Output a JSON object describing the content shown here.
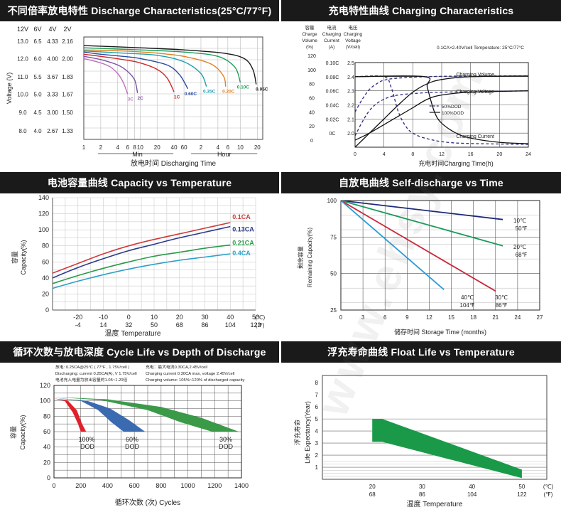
{
  "watermark": "www.ehsy.com",
  "panels": {
    "discharge": {
      "title": "不同倍率放电特性 Discharge Characteristics(25°C/77°F)",
      "volt_headers": [
        "12V",
        "6V",
        "4V",
        "2V"
      ],
      "ylabel": "Voltage (V)",
      "volt_ticks": [
        {
          "v": 2.16,
          "c": [
            "13.0",
            "6.5",
            "4.33",
            "2.16"
          ]
        },
        {
          "v": 2.0,
          "c": [
            "12.0",
            "6.0",
            "4.00",
            "2.00"
          ]
        },
        {
          "v": 1.83,
          "c": [
            "11.0",
            "5.5",
            "3.67",
            "1.83"
          ]
        },
        {
          "v": 1.67,
          "c": [
            "10.0",
            "5.0",
            "3.33",
            "1.67"
          ]
        },
        {
          "v": 1.5,
          "c": [
            "9.0",
            "4.5",
            "3.00",
            "1.50"
          ]
        },
        {
          "v": 1.33,
          "c": [
            "8.0",
            "4.0",
            "2.67",
            "1.33"
          ]
        }
      ],
      "x_ticks": [
        "1",
        "2",
        "4",
        "6",
        "8",
        "10",
        "20",
        "40",
        "60",
        "2",
        "4",
        "6",
        "10",
        "20"
      ],
      "min_label": "Min",
      "hour_label": "Hour",
      "xlabel": "放电时间 Discharging Time"
    },
    "charging": {
      "title": "充电特性曲线 Charging Characteristics",
      "col_headers": [
        {
          "zh": "容量",
          "en": [
            "Charge",
            "Volume",
            "(%)"
          ]
        },
        {
          "zh": "电流",
          "en": [
            "Charging",
            "Current",
            "(A)"
          ]
        },
        {
          "zh": "电压",
          "en": [
            "Charging",
            "Voltage",
            "(V/cell)"
          ]
        }
      ],
      "condition": "0.1CA×2.40V/cell  Temperature: 25°C/77°C",
      "volume_ticks": [
        "120",
        "100",
        "80",
        "60",
        "40",
        "20",
        "0"
      ],
      "current_ticks": [
        "0.10C",
        "0.08C",
        "0.06C",
        "0.04C",
        "0.02C",
        "0C"
      ],
      "voltage_ticks": [
        "2.5",
        "2.4",
        "2.3",
        "2.2",
        "2.1",
        "2.0"
      ],
      "x_ticks": [
        "0",
        "4",
        "8",
        "12",
        "16",
        "20",
        "24"
      ],
      "xlabel": "充电时间Charging Time(h)",
      "labels": {
        "vol": "Charging Volume",
        "volt": "Charging Voltage",
        "cur": "Charging Current"
      },
      "legend": [
        {
          "label": "50%DOD",
          "style": "dashed"
        },
        {
          "label": "100%DOD",
          "style": "solid"
        }
      ]
    },
    "capacity": {
      "title": "电池容量曲线 Capacity vs Temperature",
      "ylabel_zh": "容量",
      "ylabel_en": "Capacity(%)",
      "y_ticks": [
        "0",
        "20",
        "40",
        "60",
        "80",
        "100",
        "120",
        "140"
      ],
      "c_ticks": [
        "-20",
        "-10",
        "0",
        "10",
        "20",
        "30",
        "40",
        "50"
      ],
      "f_ticks": [
        "-4",
        "14",
        "32",
        "50",
        "68",
        "86",
        "104",
        "122"
      ],
      "unit_c": "(℃)",
      "unit_f": "(℉)",
      "xlabel": "温度 Temperature"
    },
    "selfdischarge": {
      "title": "自放电曲线 Self-discharge vs Time",
      "ylabel_zh": "剩余容量",
      "ylabel_en": "Remaining Capacity(%)",
      "y_ticks": [
        "25",
        "50",
        "75",
        "100"
      ],
      "x_ticks": [
        "0",
        "3",
        "6",
        "9",
        "12",
        "15",
        "18",
        "21",
        "24",
        "27"
      ],
      "xlabel": "储存时间 Storage Time (months)"
    },
    "cycle": {
      "title": "循环次数与放电深度 Cycle Life vs Depth of Discharge",
      "notes": [
        "放电: 0.25CA@25°C ( 77°F , 1.75V/cell )",
        "Discharging: current 0.25CA(A), V 1.75V/cell",
        "电池充入电量为放出容量的1.05~1.20倍",
        "充电：最大电流0.30CA,2.45V/cell",
        "Charging current 0.30CA max, voltage 2.45V/cell",
        "Charging volume: 105%~120% of discharged capacity"
      ],
      "ylabel_zh": "容量",
      "ylabel_en": "Capacity(%)",
      "y_ticks": [
        "0",
        "20",
        "40",
        "60",
        "80",
        "100",
        "120"
      ],
      "x_ticks": [
        "0",
        "200",
        "400",
        "600",
        "800",
        "1000",
        "1200",
        "1400"
      ],
      "xlabel": "循环次数 (次) Cycles"
    },
    "float": {
      "title": "浮充寿命曲线 Float Life vs Temperature",
      "ylabel_zh": "浮充寿命",
      "ylabel_en": "Life Expectancy(Year)",
      "y_ticks": [
        "1",
        "2",
        "3",
        "4",
        "5",
        "6",
        "7",
        "8"
      ],
      "c_ticks": [
        "20",
        "30",
        "40",
        "50"
      ],
      "f_ticks": [
        "68",
        "86",
        "104",
        "122"
      ],
      "unit_c": "(℃)",
      "unit_f": "(℉)",
      "xlabel": "温度 Temperature"
    }
  },
  "chart_data": [
    {
      "type": "line",
      "title": "不同倍率放电特性 Discharge Characteristics(25°C/77°F)",
      "xlabel": "放电时间 Discharging Time",
      "ylabel": "Voltage (V)",
      "x_scale": "log",
      "x_unit": "minutes",
      "ylim": [
        1.25,
        2.2
      ],
      "series": [
        {
          "name": "3C",
          "color": "#c070c0",
          "x": [
            1,
            2,
            3,
            4,
            5,
            6
          ],
          "y": [
            2.0,
            1.96,
            1.92,
            1.86,
            1.78,
            1.67
          ]
        },
        {
          "name": "2C",
          "color": "#7a50a0",
          "x": [
            1,
            2,
            4,
            6,
            8,
            9
          ],
          "y": [
            2.02,
            1.99,
            1.94,
            1.88,
            1.8,
            1.68
          ]
        },
        {
          "name": "1C",
          "color": "#d02828",
          "x": [
            1,
            2,
            5,
            10,
            20,
            30,
            40
          ],
          "y": [
            2.04,
            2.02,
            1.99,
            1.96,
            1.9,
            1.82,
            1.69
          ]
        },
        {
          "name": "0.60C",
          "color": "#2a4aa0",
          "x": [
            1,
            2,
            5,
            10,
            30,
            50,
            70
          ],
          "y": [
            2.06,
            2.04,
            2.02,
            2.0,
            1.94,
            1.85,
            1.72
          ]
        },
        {
          "name": "0.35C",
          "color": "#1aa0b0",
          "x": [
            1,
            5,
            20,
            60,
            120,
            150
          ],
          "y": [
            2.07,
            2.05,
            2.03,
            1.97,
            1.86,
            1.74
          ]
        },
        {
          "name": "0.20C",
          "color": "#e08020",
          "x": [
            1,
            5,
            20,
            60,
            180,
            300,
            330
          ],
          "y": [
            2.08,
            2.07,
            2.05,
            2.02,
            1.95,
            1.84,
            1.74
          ]
        },
        {
          "name": "0.10C",
          "color": "#1aa05a",
          "x": [
            1,
            10,
            60,
            240,
            480,
            600
          ],
          "y": [
            2.1,
            2.08,
            2.06,
            2.02,
            1.92,
            1.78
          ]
        },
        {
          "name": "0.05C",
          "color": "#1a1a1a",
          "x": [
            1,
            10,
            60,
            300,
            700,
            1000,
            1150
          ],
          "y": [
            2.12,
            2.1,
            2.08,
            2.05,
            2.0,
            1.9,
            1.76
          ]
        }
      ]
    },
    {
      "type": "line",
      "title": "充电特性曲线 Charging Characteristics",
      "xlabel": "充电时间Charging Time(h)",
      "xlim": [
        0,
        24
      ],
      "series": [
        {
          "name": "Charging Volume 50%DOD",
          "axis": "volume",
          "style": "dashed",
          "x": [
            0,
            1,
            2,
            3,
            4,
            6,
            10,
            16,
            24
          ],
          "y": [
            50,
            68,
            82,
            90,
            95,
            98,
            100,
            101,
            101
          ]
        },
        {
          "name": "Charging Volume 100%DOD",
          "axis": "volume",
          "style": "solid",
          "x": [
            0,
            2,
            4,
            6,
            8,
            10,
            12,
            16,
            24
          ],
          "y": [
            0,
            20,
            40,
            60,
            78,
            90,
            96,
            100,
            101
          ]
        },
        {
          "name": "Charging Voltage 50%DOD",
          "axis": "voltage",
          "style": "dashed",
          "x": [
            0,
            1,
            2,
            3,
            4,
            5,
            6,
            8,
            12,
            24
          ],
          "y": [
            2.08,
            2.18,
            2.26,
            2.31,
            2.34,
            2.36,
            2.37,
            2.38,
            2.39,
            2.4
          ]
        },
        {
          "name": "Charging Voltage 100%DOD",
          "axis": "voltage",
          "style": "solid",
          "x": [
            0,
            2,
            4,
            6,
            8,
            10,
            12,
            16,
            24
          ],
          "y": [
            2.05,
            2.1,
            2.16,
            2.22,
            2.28,
            2.34,
            2.37,
            2.39,
            2.4
          ]
        },
        {
          "name": "Charging Current 50%DOD",
          "axis": "current",
          "style": "dashed",
          "x": [
            0,
            4,
            5,
            6,
            7,
            8,
            10,
            14,
            24
          ],
          "y": [
            0.1,
            0.1,
            0.085,
            0.05,
            0.03,
            0.02,
            0.012,
            0.006,
            0.004
          ]
        },
        {
          "name": "Charging Current 100%DOD",
          "axis": "current",
          "style": "solid",
          "x": [
            0,
            9.6,
            10,
            11,
            12,
            14,
            16,
            20,
            24
          ],
          "y": [
            0.1,
            0.1,
            0.085,
            0.05,
            0.034,
            0.02,
            0.013,
            0.007,
            0.005
          ]
        }
      ]
    },
    {
      "type": "line",
      "title": "电池容量曲线 Capacity vs Temperature",
      "xlabel": "温度 Temperature",
      "ylabel": "Capacity(%)",
      "xlim": [
        -30,
        50
      ],
      "ylim": [
        0,
        140
      ],
      "series": [
        {
          "name": "0.1CA",
          "color": "#d03a3a",
          "x": [
            -30,
            -20,
            -10,
            0,
            10,
            20,
            30,
            40
          ],
          "y": [
            46,
            58,
            70,
            80,
            88,
            95,
            102,
            109
          ]
        },
        {
          "name": "0.13CA",
          "color": "#2a3a8a",
          "x": [
            -30,
            -20,
            -10,
            0,
            10,
            20,
            30,
            40
          ],
          "y": [
            40,
            53,
            64,
            74,
            82,
            90,
            97,
            104
          ]
        },
        {
          "name": "0.21CA",
          "color": "#2a9a4a",
          "x": [
            -30,
            -20,
            -10,
            0,
            10,
            20,
            30,
            40
          ],
          "y": [
            33,
            43,
            52,
            60,
            67,
            72,
            77,
            81
          ]
        },
        {
          "name": "0.4CA",
          "color": "#2aa0c8",
          "x": [
            -30,
            -20,
            -10,
            0,
            10,
            20,
            30,
            40
          ],
          "y": [
            27,
            36,
            44,
            51,
            57,
            62,
            66,
            70
          ]
        }
      ]
    },
    {
      "type": "line",
      "title": "自放电曲线 Self-discharge vs Time",
      "xlabel": "储存时间 Storage Time (months)",
      "ylabel": "Remaining Capacity(%)",
      "xlim": [
        0,
        27
      ],
      "ylim": [
        25,
        100
      ],
      "series": [
        {
          "name": "10℃ 50℉",
          "color": "#1e2a78",
          "x": [
            0,
            22
          ],
          "y": [
            100,
            87
          ]
        },
        {
          "name": "20℃ 68℉",
          "color": "#1a9a5a",
          "x": [
            0,
            22
          ],
          "y": [
            100,
            69
          ]
        },
        {
          "name": "30℃ 86℉",
          "color": "#c8283a",
          "x": [
            0,
            21
          ],
          "y": [
            100,
            38
          ]
        },
        {
          "name": "40℃ 104℉",
          "color": "#2a9ad8",
          "x": [
            0,
            14
          ],
          "y": [
            100,
            39
          ]
        }
      ]
    },
    {
      "type": "area",
      "title": "循环次数与放电深度 Cycle Life vs Depth of Discharge",
      "xlabel": "循环次数 (次) Cycles",
      "ylabel": "Capacity(%)",
      "xlim": [
        0,
        1400
      ],
      "ylim": [
        0,
        120
      ],
      "series": [
        {
          "name": "100% DOD",
          "color": "#e0202a",
          "upper": [
            [
              0,
              103
            ],
            [
              100,
              101
            ],
            [
              170,
              88
            ],
            [
              210,
              70
            ],
            [
              240,
              60
            ]
          ],
          "lower": [
            [
              0,
              103
            ],
            [
              80,
              100
            ],
            [
              140,
              85
            ],
            [
              180,
              70
            ],
            [
              200,
              60
            ]
          ]
        },
        {
          "name": "60% DOD",
          "color": "#3a6ab0",
          "upper": [
            [
              0,
              104
            ],
            [
              250,
              100
            ],
            [
              420,
              90
            ],
            [
              560,
              75
            ],
            [
              680,
              60
            ]
          ],
          "lower": [
            [
              0,
              104
            ],
            [
              200,
              100
            ],
            [
              330,
              88
            ],
            [
              430,
              72
            ],
            [
              520,
              60
            ]
          ]
        },
        {
          "name": "30% DOD",
          "color": "#3a9a48",
          "upper": [
            [
              0,
              105
            ],
            [
              400,
              102
            ],
            [
              800,
              92
            ],
            [
              1100,
              78
            ],
            [
              1380,
              60
            ]
          ],
          "lower": [
            [
              0,
              105
            ],
            [
              350,
              101
            ],
            [
              700,
              88
            ],
            [
              950,
              72
            ],
            [
              1180,
              60
            ]
          ]
        }
      ]
    },
    {
      "type": "area",
      "title": "浮充寿命曲线 Float Life vs Temperature",
      "xlabel": "温度 Temperature",
      "ylabel": "Life Expectancy(Year)",
      "xlim": [
        20,
        50
      ],
      "ylim": [
        0,
        8
      ],
      "series": [
        {
          "name": "Float life",
          "color": "#1a9a48",
          "upper": [
            [
              20,
              5
            ],
            [
              22,
              5
            ],
            [
              50,
              0.8
            ]
          ],
          "lower": [
            [
              20,
              3.1
            ],
            [
              22,
              3.1
            ],
            [
              50,
              0.1
            ]
          ]
        }
      ]
    }
  ]
}
